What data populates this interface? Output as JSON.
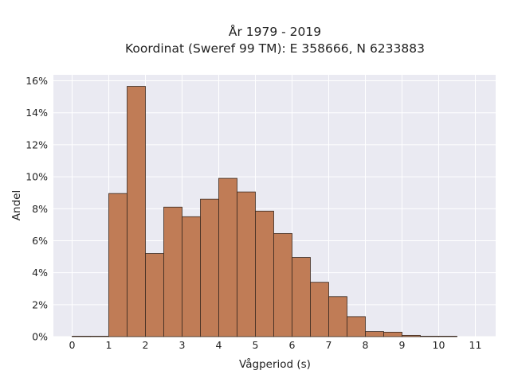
{
  "chart_data": {
    "type": "bar",
    "title_line1": "År 1979 - 2019",
    "title_line2": "Koordinat (Sweref 99 TM): E 358666, N 6233883",
    "xlabel": "Vågperiod (s)",
    "ylabel": "Andel",
    "xlim": [
      -0.5,
      11.5
    ],
    "ylim": [
      0,
      16.2
    ],
    "x_ticks": [
      "0",
      "1",
      "2",
      "3",
      "4",
      "5",
      "6",
      "7",
      "8",
      "9",
      "10",
      "11"
    ],
    "y_ticks": [
      "0%",
      "2%",
      "4%",
      "6%",
      "8%",
      "10%",
      "12%",
      "14%",
      "16%"
    ],
    "bin_width": 0.5,
    "bins": [
      {
        "x": 0.0,
        "value": 0.02
      },
      {
        "x": 0.5,
        "value": 0.0
      },
      {
        "x": 1.0,
        "value": 8.95
      },
      {
        "x": 1.5,
        "value": 15.65
      },
      {
        "x": 2.0,
        "value": 5.2
      },
      {
        "x": 2.5,
        "value": 8.1
      },
      {
        "x": 3.0,
        "value": 7.5
      },
      {
        "x": 3.5,
        "value": 8.6
      },
      {
        "x": 4.0,
        "value": 9.9
      },
      {
        "x": 4.5,
        "value": 9.05
      },
      {
        "x": 5.0,
        "value": 7.85
      },
      {
        "x": 5.5,
        "value": 6.45
      },
      {
        "x": 6.0,
        "value": 4.95
      },
      {
        "x": 6.5,
        "value": 3.4
      },
      {
        "x": 7.0,
        "value": 2.5
      },
      {
        "x": 7.5,
        "value": 1.25
      },
      {
        "x": 8.0,
        "value": 0.32
      },
      {
        "x": 8.5,
        "value": 0.28
      },
      {
        "x": 9.0,
        "value": 0.08
      },
      {
        "x": 9.5,
        "value": 0.03
      },
      {
        "x": 10.0,
        "value": 0.01
      }
    ],
    "grid": true,
    "colors": {
      "bar": "#c07c56",
      "edge": "#3a2a20",
      "background": "#eaeaf2",
      "grid": "#ffffff"
    }
  }
}
